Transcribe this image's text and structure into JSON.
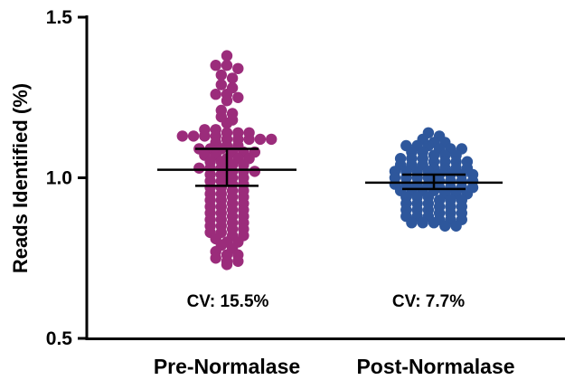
{
  "chart_data": {
    "type": "scatter",
    "ylabel": "Reads Identified (%)",
    "xlabel": "",
    "ylim": [
      0.5,
      1.5
    ],
    "yticks": [
      "0.5",
      "1.0",
      "1.5"
    ],
    "categories": [
      "Pre-Normalase",
      "Post-Normalase"
    ],
    "colors": {
      "Pre-Normalase": "#9b2c7b",
      "Post-Normalase": "#2e579c"
    },
    "series": [
      {
        "name": "Pre-Normalase",
        "annotation": "CV: 15.5%",
        "mean": 1.025,
        "sd_low": 0.975,
        "sd_high": 1.09,
        "values": [
          1.38,
          1.35,
          1.35,
          1.34,
          1.32,
          1.31,
          1.29,
          1.28,
          1.26,
          1.26,
          1.25,
          1.24,
          1.21,
          1.2,
          1.19,
          1.18,
          1.17,
          1.15,
          1.15,
          1.14,
          1.14,
          1.14,
          1.13,
          1.13,
          1.13,
          1.13,
          1.12,
          1.12,
          1.12,
          1.12,
          1.12,
          1.11,
          1.1,
          1.1,
          1.09,
          1.09,
          1.09,
          1.08,
          1.08,
          1.08,
          1.07,
          1.07,
          1.06,
          1.06,
          1.06,
          1.05,
          1.05,
          1.04,
          1.04,
          1.03,
          1.03,
          1.03,
          1.02,
          1.02,
          1.02,
          1.01,
          1.01,
          1.0,
          1.0,
          0.99,
          0.99,
          0.98,
          0.98,
          0.97,
          0.97,
          0.96,
          0.96,
          0.95,
          0.95,
          0.94,
          0.94,
          0.93,
          0.93,
          0.92,
          0.92,
          0.91,
          0.91,
          0.9,
          0.9,
          0.89,
          0.89,
          0.88,
          0.88,
          0.87,
          0.87,
          0.86,
          0.86,
          0.85,
          0.85,
          0.84,
          0.84,
          0.83,
          0.83,
          0.82,
          0.82,
          0.81,
          0.8,
          0.8,
          0.79,
          0.78,
          0.77,
          0.76,
          0.76,
          0.75,
          0.74,
          0.74,
          0.73
        ]
      },
      {
        "name": "Post-Normalase",
        "annotation": "CV: 7.7%",
        "mean": 0.985,
        "sd_low": 0.965,
        "sd_high": 1.01,
        "values": [
          1.14,
          1.13,
          1.12,
          1.11,
          1.11,
          1.1,
          1.1,
          1.1,
          1.09,
          1.09,
          1.09,
          1.08,
          1.08,
          1.07,
          1.07,
          1.07,
          1.06,
          1.06,
          1.06,
          1.05,
          1.05,
          1.05,
          1.05,
          1.04,
          1.04,
          1.04,
          1.03,
          1.03,
          1.03,
          1.03,
          1.02,
          1.02,
          1.02,
          1.02,
          1.01,
          1.01,
          1.01,
          1.01,
          1.0,
          1.0,
          1.0,
          1.0,
          0.99,
          0.99,
          0.99,
          0.99,
          0.98,
          0.98,
          0.98,
          0.98,
          0.97,
          0.97,
          0.97,
          0.97,
          0.96,
          0.96,
          0.96,
          0.96,
          0.95,
          0.95,
          0.95,
          0.94,
          0.94,
          0.94,
          0.93,
          0.93,
          0.93,
          0.92,
          0.92,
          0.92,
          0.91,
          0.91,
          0.91,
          0.9,
          0.9,
          0.9,
          0.89,
          0.89,
          0.89,
          0.88,
          0.88,
          0.88,
          0.87,
          0.87,
          0.87,
          0.86,
          0.86,
          0.86,
          0.85,
          0.85
        ]
      }
    ]
  }
}
